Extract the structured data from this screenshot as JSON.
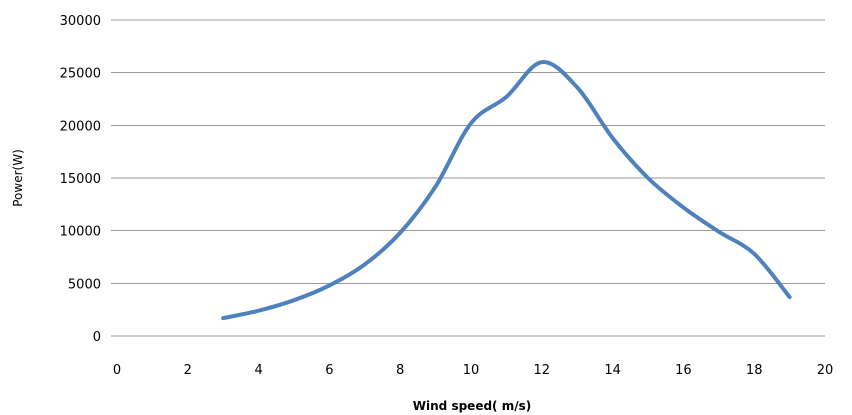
{
  "chart_data": {
    "type": "line",
    "xlabel": "Wind speed( m/s)",
    "ylabel": "Power(W)",
    "xlim": [
      0,
      20
    ],
    "ylim": [
      0,
      30000
    ],
    "x_ticks": [
      0,
      2,
      4,
      6,
      8,
      10,
      12,
      14,
      16,
      18,
      20
    ],
    "y_ticks": [
      0,
      5000,
      10000,
      15000,
      20000,
      25000,
      30000
    ],
    "grid": "horizontal",
    "legend": "none",
    "series": [
      {
        "color": "#4f81bd",
        "x": [
          3,
          4,
          5,
          6,
          7,
          8,
          9,
          10,
          11,
          12,
          13,
          14,
          15,
          16,
          17,
          18,
          19
        ],
        "y": [
          1700,
          2400,
          3400,
          4800,
          6800,
          9800,
          14200,
          20200,
          22700,
          26000,
          23600,
          18800,
          15000,
          12200,
          9900,
          7800,
          3700
        ]
      }
    ]
  }
}
